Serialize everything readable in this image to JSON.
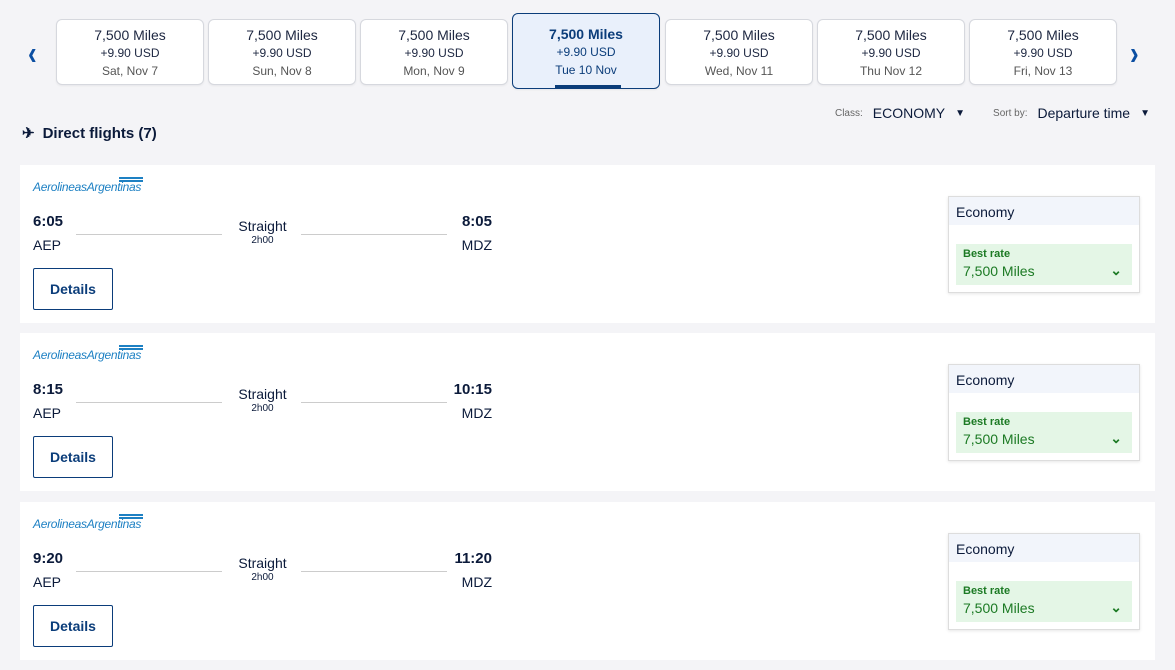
{
  "dates": [
    {
      "miles": "7,500 Miles",
      "fee": "+9.90 USD",
      "date": "Sat, Nov 7",
      "selected": false
    },
    {
      "miles": "7,500 Miles",
      "fee": "+9.90 USD",
      "date": "Sun, Nov 8",
      "selected": false
    },
    {
      "miles": "7,500 Miles",
      "fee": "+9.90 USD",
      "date": "Mon, Nov 9",
      "selected": false
    },
    {
      "miles": "7,500 Miles",
      "fee": "+9.90 USD",
      "date": "Tue 10 Nov",
      "selected": true
    },
    {
      "miles": "7,500 Miles",
      "fee": "+9.90 USD",
      "date": "Wed, Nov 11",
      "selected": false
    },
    {
      "miles": "7,500 Miles",
      "fee": "+9.90 USD",
      "date": "Thu Nov 12",
      "selected": false
    },
    {
      "miles": "7,500 Miles",
      "fee": "+9.90 USD",
      "date": "Fri, Nov 13",
      "selected": false
    }
  ],
  "heading": "Direct flights (7)",
  "filters": {
    "class_label": "Class:",
    "class_value": "ECONOMY",
    "sort_label": "Sort by:",
    "sort_value": "Departure time"
  },
  "flights": [
    {
      "airline": "AerolineasArgentinas",
      "dep": "6:05",
      "from": "AEP",
      "type": "Straight",
      "duration": "2h00",
      "arr": "8:05",
      "to": "MDZ",
      "details": "Details",
      "cabin": "Economy",
      "rate_label": "Best rate",
      "rate": "7,500 Miles"
    },
    {
      "airline": "AerolineasArgentinas",
      "dep": "8:15",
      "from": "AEP",
      "type": "Straight",
      "duration": "2h00",
      "arr": "10:15",
      "to": "MDZ",
      "details": "Details",
      "cabin": "Economy",
      "rate_label": "Best rate",
      "rate": "7,500 Miles"
    },
    {
      "airline": "AerolineasArgentinas",
      "dep": "9:20",
      "from": "AEP",
      "type": "Straight",
      "duration": "2h00",
      "arr": "11:20",
      "to": "MDZ",
      "details": "Details",
      "cabin": "Economy",
      "rate_label": "Best rate",
      "rate": "7,500 Miles"
    }
  ],
  "colors": {
    "primary": "#0b3d7a",
    "best_rate": "#1c7a24",
    "best_rate_bg": "#e4f6e6"
  }
}
